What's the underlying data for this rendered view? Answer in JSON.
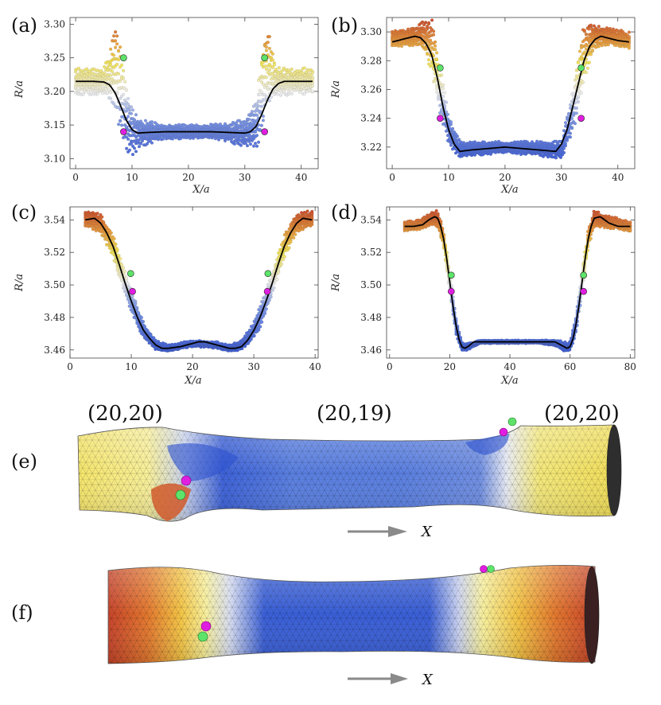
{
  "figure": {
    "tube_e": {
      "label": "(e)",
      "chirality_left": "(20,20)",
      "chirality_middle": "(20,19)",
      "chirality_right": "(20,20)",
      "arrow_label": "X"
    },
    "tube_f": {
      "label": "(f)",
      "arrow_label": "X"
    },
    "colors": {
      "fit_curve": "#000000",
      "marker_green": "#5ee36a",
      "marker_magenta": "#e01ee0",
      "low_radius": "#3556d6",
      "high_radius": "#c7432a",
      "mid_radius": "#f2e45a",
      "neutral": "#f4f4f4"
    }
  },
  "chart_data": [
    {
      "id": "a",
      "label": "(a)",
      "type": "scatter",
      "xlabel": "X/a",
      "ylabel": "R/a",
      "xlim": [
        -1,
        43
      ],
      "ylim": [
        3.085,
        3.31
      ],
      "xticks": [
        0,
        10,
        20,
        30,
        40
      ],
      "yticks": [
        3.1,
        3.15,
        3.2,
        3.25,
        3.3
      ],
      "ytick_labels": [
        "3.10",
        "3.15",
        "3.20",
        "3.25",
        "3.30"
      ],
      "fit_curve": {
        "x": [
          0,
          3,
          5,
          6,
          7,
          8,
          9,
          10,
          11,
          13,
          16,
          20,
          24,
          27,
          30,
          31,
          32,
          33,
          34,
          35,
          36,
          37,
          39,
          42
        ],
        "y": [
          3.215,
          3.215,
          3.214,
          3.21,
          3.198,
          3.178,
          3.157,
          3.143,
          3.138,
          3.139,
          3.14,
          3.14,
          3.14,
          3.139,
          3.138,
          3.14,
          3.148,
          3.166,
          3.187,
          3.204,
          3.212,
          3.215,
          3.215,
          3.215
        ]
      },
      "scatter_envelope": {
        "x": [
          0,
          3,
          5,
          6,
          7,
          8,
          9,
          10,
          12,
          15,
          20,
          25,
          30,
          32,
          33,
          34,
          35,
          36,
          38,
          42
        ],
        "center": [
          3.215,
          3.215,
          3.214,
          3.22,
          3.24,
          3.2,
          3.16,
          3.14,
          3.138,
          3.14,
          3.14,
          3.14,
          3.138,
          3.15,
          3.2,
          3.24,
          3.22,
          3.214,
          3.215,
          3.215
        ],
        "spread": [
          0.02,
          0.02,
          0.022,
          0.035,
          0.06,
          0.07,
          0.05,
          0.035,
          0.02,
          0.012,
          0.01,
          0.012,
          0.02,
          0.035,
          0.07,
          0.06,
          0.035,
          0.022,
          0.02,
          0.02
        ]
      },
      "markers": [
        {
          "color": "green",
          "x": 8.5,
          "y": 3.25
        },
        {
          "color": "magenta",
          "x": 8.5,
          "y": 3.14
        },
        {
          "color": "green",
          "x": 33.5,
          "y": 3.25
        },
        {
          "color": "magenta",
          "x": 33.5,
          "y": 3.14
        }
      ]
    },
    {
      "id": "b",
      "label": "(b)",
      "type": "scatter",
      "xlabel": "X/a",
      "ylabel": "R/a",
      "xlim": [
        -1,
        43
      ],
      "ylim": [
        3.205,
        3.31
      ],
      "xticks": [
        0,
        10,
        20,
        30,
        40
      ],
      "yticks": [
        3.22,
        3.24,
        3.26,
        3.28,
        3.3
      ],
      "ytick_labels": [
        "3.22",
        "3.24",
        "3.26",
        "3.28",
        "3.30"
      ],
      "fit_curve": {
        "x": [
          0,
          2,
          4,
          5,
          6,
          7,
          8,
          9,
          10,
          11,
          12,
          14,
          17,
          20,
          23,
          26,
          29,
          30,
          31,
          32,
          33,
          34,
          35,
          36,
          37,
          38,
          40,
          42
        ],
        "y": [
          3.293,
          3.295,
          3.297,
          3.296,
          3.292,
          3.284,
          3.268,
          3.248,
          3.232,
          3.222,
          3.217,
          3.218,
          3.219,
          3.22,
          3.219,
          3.218,
          3.217,
          3.222,
          3.232,
          3.248,
          3.264,
          3.28,
          3.29,
          3.295,
          3.297,
          3.296,
          3.294,
          3.293
        ]
      },
      "scatter_envelope": {
        "x": [
          0,
          3,
          5,
          6,
          7,
          8,
          9,
          10,
          12,
          15,
          20,
          25,
          30,
          32,
          33,
          34,
          35,
          36,
          38,
          42
        ],
        "center": [
          3.295,
          3.296,
          3.298,
          3.296,
          3.29,
          3.27,
          3.25,
          3.232,
          3.218,
          3.219,
          3.22,
          3.219,
          3.218,
          3.245,
          3.265,
          3.285,
          3.293,
          3.297,
          3.297,
          3.294
        ],
        "spread": [
          0.006,
          0.006,
          0.008,
          0.015,
          0.02,
          0.02,
          0.015,
          0.01,
          0.006,
          0.005,
          0.004,
          0.005,
          0.006,
          0.015,
          0.02,
          0.02,
          0.015,
          0.008,
          0.006,
          0.006
        ]
      },
      "markers": [
        {
          "color": "green",
          "x": 8.5,
          "y": 3.275
        },
        {
          "color": "magenta",
          "x": 8.5,
          "y": 3.24
        },
        {
          "color": "green",
          "x": 33.5,
          "y": 3.275
        },
        {
          "color": "magenta",
          "x": 33.5,
          "y": 3.24
        }
      ]
    },
    {
      "id": "c",
      "label": "(c)",
      "type": "scatter",
      "xlabel": "X/a",
      "ylabel": "R/a",
      "xlim": [
        0,
        40.5
      ],
      "ylim": [
        3.455,
        3.548
      ],
      "xticks": [
        0,
        10,
        20,
        30,
        40
      ],
      "yticks": [
        3.46,
        3.48,
        3.5,
        3.52,
        3.54
      ],
      "ytick_labels": [
        "3.46",
        "3.48",
        "3.50",
        "3.52",
        "3.54"
      ],
      "fit_curve": {
        "x": [
          2.5,
          4,
          5,
          6,
          7,
          8,
          9,
          10,
          11,
          12,
          13,
          14,
          15,
          16,
          18,
          20,
          21,
          22,
          24,
          26,
          27,
          28,
          29,
          30,
          31,
          32,
          33,
          34,
          35,
          36,
          37,
          38,
          39.5
        ],
        "y": [
          3.54,
          3.541,
          3.538,
          3.532,
          3.524,
          3.513,
          3.501,
          3.49,
          3.48,
          3.472,
          3.467,
          3.463,
          3.461,
          3.461,
          3.462,
          3.464,
          3.465,
          3.465,
          3.463,
          3.461,
          3.461,
          3.462,
          3.466,
          3.472,
          3.48,
          3.49,
          3.501,
          3.513,
          3.524,
          3.532,
          3.538,
          3.541,
          3.54
        ]
      },
      "scatter_envelope": {
        "x": [
          2.5,
          5,
          7,
          9,
          10,
          12,
          14,
          16,
          20,
          24,
          26,
          28,
          30,
          31,
          33,
          35,
          37,
          39.5
        ],
        "center": [
          3.541,
          3.538,
          3.524,
          3.501,
          3.49,
          3.472,
          3.463,
          3.461,
          3.464,
          3.463,
          3.461,
          3.463,
          3.472,
          3.48,
          3.501,
          3.524,
          3.538,
          3.541
        ],
        "spread": [
          0.005,
          0.006,
          0.007,
          0.007,
          0.007,
          0.005,
          0.003,
          0.002,
          0.002,
          0.002,
          0.002,
          0.003,
          0.005,
          0.007,
          0.007,
          0.007,
          0.006,
          0.005
        ]
      },
      "markers": [
        {
          "color": "green",
          "x": 9.9,
          "y": 3.507
        },
        {
          "color": "magenta",
          "x": 10.2,
          "y": 3.496
        },
        {
          "color": "green",
          "x": 32.3,
          "y": 3.507
        },
        {
          "color": "magenta",
          "x": 32.2,
          "y": 3.496
        }
      ]
    },
    {
      "id": "d",
      "label": "(d)",
      "type": "scatter",
      "xlabel": "X/a",
      "ylabel": "R/a",
      "xlim": [
        -1,
        81.5
      ],
      "ylim": [
        3.455,
        3.548
      ],
      "xticks": [
        0,
        20,
        40,
        60,
        80
      ],
      "yticks": [
        3.46,
        3.48,
        3.5,
        3.52,
        3.54
      ],
      "ytick_labels": [
        "3.46",
        "3.48",
        "3.50",
        "3.52",
        "3.54"
      ],
      "fit_curve": {
        "x": [
          5,
          8,
          11,
          13,
          15,
          16,
          17,
          18,
          19,
          20,
          21,
          22,
          23,
          24,
          25,
          26,
          28,
          32,
          40,
          48,
          55,
          57,
          59,
          60,
          61,
          62,
          63,
          64,
          65,
          66,
          67,
          68,
          70,
          73,
          76,
          80
        ],
        "y": [
          3.536,
          3.536,
          3.537,
          3.54,
          3.542,
          3.541,
          3.536,
          3.528,
          3.516,
          3.502,
          3.488,
          3.476,
          3.467,
          3.462,
          3.461,
          3.462,
          3.465,
          3.465,
          3.465,
          3.465,
          3.465,
          3.463,
          3.461,
          3.462,
          3.467,
          3.476,
          3.488,
          3.502,
          3.516,
          3.528,
          3.536,
          3.541,
          3.542,
          3.538,
          3.536,
          3.536
        ]
      },
      "scatter_envelope": {
        "x": [
          5,
          10,
          14,
          16,
          18,
          20,
          22,
          24,
          26,
          30,
          40,
          50,
          56,
          58,
          60,
          62,
          64,
          66,
          68,
          72,
          80
        ],
        "center": [
          3.536,
          3.537,
          3.541,
          3.541,
          3.528,
          3.502,
          3.476,
          3.462,
          3.462,
          3.465,
          3.465,
          3.465,
          3.464,
          3.462,
          3.462,
          3.476,
          3.502,
          3.528,
          3.541,
          3.539,
          3.536
        ],
        "spread": [
          0.003,
          0.003,
          0.004,
          0.005,
          0.006,
          0.007,
          0.006,
          0.003,
          0.002,
          0.001,
          0.001,
          0.001,
          0.002,
          0.003,
          0.003,
          0.006,
          0.007,
          0.006,
          0.005,
          0.004,
          0.003
        ]
      },
      "markers": [
        {
          "color": "green",
          "x": 20.5,
          "y": 3.506
        },
        {
          "color": "magenta",
          "x": 20.5,
          "y": 3.496
        },
        {
          "color": "green",
          "x": 64.5,
          "y": 3.506
        },
        {
          "color": "magenta",
          "x": 64.5,
          "y": 3.496
        }
      ]
    }
  ]
}
